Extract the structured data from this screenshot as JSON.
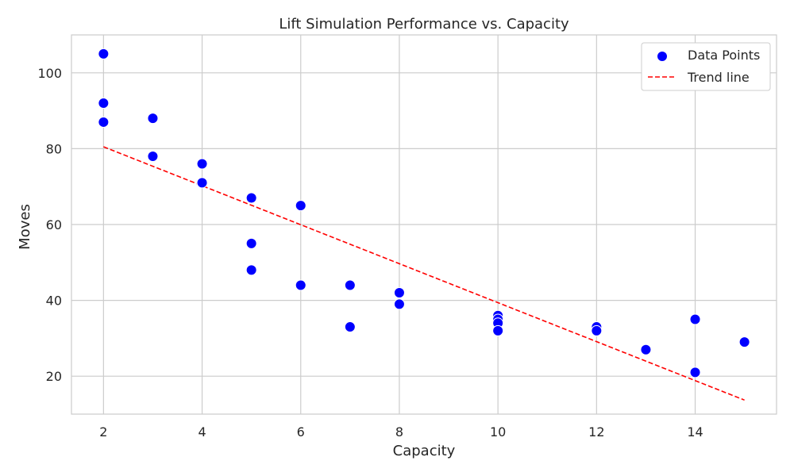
{
  "chart_data": {
    "type": "scatter",
    "title": "Lift Simulation Performance vs. Capacity",
    "xlabel": "Capacity",
    "ylabel": "Moves",
    "xlim": [
      1.35,
      15.65
    ],
    "ylim": [
      10,
      110
    ],
    "xticks": [
      2,
      4,
      6,
      8,
      10,
      12,
      14
    ],
    "yticks": [
      20,
      40,
      60,
      80,
      100
    ],
    "grid": true,
    "legend_position": "top-right",
    "series": [
      {
        "name": "Data Points",
        "kind": "scatter",
        "color": "#0000ff",
        "points": [
          [
            2,
            105
          ],
          [
            2,
            92
          ],
          [
            2,
            87
          ],
          [
            3,
            88
          ],
          [
            3,
            78
          ],
          [
            4,
            76
          ],
          [
            4,
            71
          ],
          [
            5,
            67
          ],
          [
            5,
            55
          ],
          [
            5,
            48
          ],
          [
            6,
            65
          ],
          [
            6,
            44
          ],
          [
            7,
            44
          ],
          [
            7,
            33
          ],
          [
            8,
            42
          ],
          [
            8,
            39
          ],
          [
            10,
            36
          ],
          [
            10,
            35
          ],
          [
            10,
            34
          ],
          [
            10,
            32
          ],
          [
            12,
            33
          ],
          [
            12,
            32
          ],
          [
            13,
            27
          ],
          [
            14,
            35
          ],
          [
            14,
            21
          ],
          [
            15,
            29
          ]
        ]
      },
      {
        "name": "Trend line",
        "kind": "line",
        "color": "#ff0000",
        "dash": "dashed",
        "x": [
          2,
          15
        ],
        "y": [
          80.5,
          13.7
        ]
      }
    ]
  }
}
